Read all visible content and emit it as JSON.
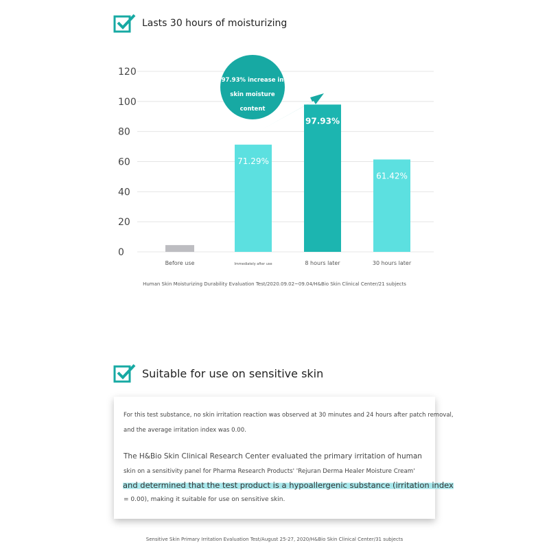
{
  "section1": {
    "title": "Lasts 30 hours of moisturizing"
  },
  "chart_data": {
    "type": "bar",
    "categories": [
      "Before use",
      "Immediately after use",
      "8 hours later",
      "30 hours later"
    ],
    "values": [
      4.5,
      71.29,
      97.93,
      61.42
    ],
    "data_labels": [
      "",
      "71.29%",
      "97.93%",
      "61.42%"
    ],
    "ylim": [
      0,
      120
    ],
    "yticks": [
      0,
      20,
      40,
      60,
      80,
      100,
      120
    ],
    "grid": true,
    "annotation": [
      "97.93% increase in",
      "skin moisture",
      "content"
    ],
    "colors": [
      "#bdbdc1",
      "#5ce0e0",
      "#1cb5b0",
      "#5ce0e0"
    ],
    "accent": "#17a9a3"
  },
  "source1": "Human Skin Moisturizing Durability Evaluation Test/2020.09.02~09.04/H&Bio Skin Clinical Center/21 subjects",
  "section2": {
    "title": "Suitable for use on sensitive skin",
    "para1_line1": "For this test substance, no skin irritation reaction was observed at 30 minutes and 24 hours after patch removal,",
    "para1_line2": "and the average irritation index was 0.00.",
    "para2_line1": "The H&Bio Skin Clinical Research Center evaluated the primary irritation of human",
    "para2_line2": "skin on a sensitivity panel for Pharma Research Products' 'Rejuran Derma Healer Moisture Cream'",
    "para2_line3": "and determined that the test product is a hypoallergenic substance (irritation index",
    "para2_line4": "= 0.00), making it suitable for use on sensitive skin."
  },
  "source2": "Sensitive Skin Primary Irritation Evaluation Test/August 25-27, 2020/H&Bio Skin Clinical Center/31 subjects"
}
